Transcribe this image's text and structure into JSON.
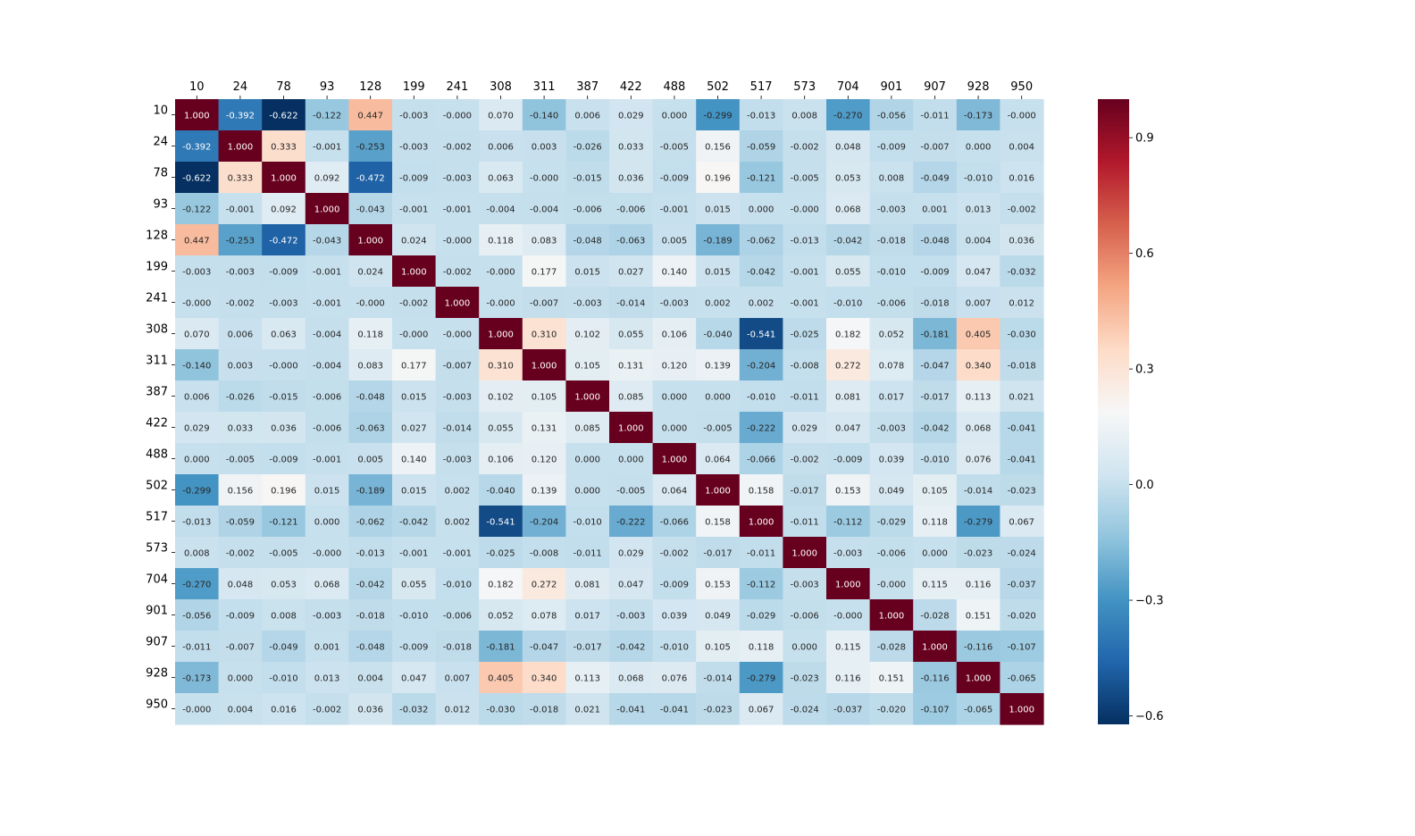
{
  "chart_data": {
    "type": "heatmap",
    "title": "",
    "xlabel": "",
    "ylabel": "",
    "labels": [
      "10",
      "24",
      "78",
      "93",
      "128",
      "199",
      "241",
      "308",
      "311",
      "387",
      "422",
      "488",
      "502",
      "517",
      "573",
      "704",
      "901",
      "907",
      "928",
      "950"
    ],
    "values": [
      [
        "1.000",
        "-0.392",
        "-0.622",
        "-0.122",
        "0.447",
        "-0.003",
        "-0.000",
        "0.070",
        "-0.140",
        "0.006",
        "0.029",
        "0.000",
        "-0.299",
        "-0.013",
        "0.008",
        "-0.270",
        "-0.056",
        "-0.011",
        "-0.173",
        "-0.000"
      ],
      [
        "-0.392",
        "1.000",
        "0.333",
        "-0.001",
        "-0.253",
        "-0.003",
        "-0.002",
        "0.006",
        "0.003",
        "-0.026",
        "0.033",
        "-0.005",
        "0.156",
        "-0.059",
        "-0.002",
        "0.048",
        "-0.009",
        "-0.007",
        "0.000",
        "0.004"
      ],
      [
        "-0.622",
        "0.333",
        "1.000",
        "0.092",
        "-0.472",
        "-0.009",
        "-0.003",
        "0.063",
        "-0.000",
        "-0.015",
        "0.036",
        "-0.009",
        "0.196",
        "-0.121",
        "-0.005",
        "0.053",
        "0.008",
        "-0.049",
        "-0.010",
        "0.016"
      ],
      [
        "-0.122",
        "-0.001",
        "0.092",
        "1.000",
        "-0.043",
        "-0.001",
        "-0.001",
        "-0.004",
        "-0.004",
        "-0.006",
        "-0.006",
        "-0.001",
        "0.015",
        "0.000",
        "-0.000",
        "0.068",
        "-0.003",
        "0.001",
        "0.013",
        "-0.002"
      ],
      [
        "0.447",
        "-0.253",
        "-0.472",
        "-0.043",
        "1.000",
        "0.024",
        "-0.000",
        "0.118",
        "0.083",
        "-0.048",
        "-0.063",
        "0.005",
        "-0.189",
        "-0.062",
        "-0.013",
        "-0.042",
        "-0.018",
        "-0.048",
        "0.004",
        "0.036"
      ],
      [
        "-0.003",
        "-0.003",
        "-0.009",
        "-0.001",
        "0.024",
        "1.000",
        "-0.002",
        "-0.000",
        "0.177",
        "0.015",
        "0.027",
        "0.140",
        "0.015",
        "-0.042",
        "-0.001",
        "0.055",
        "-0.010",
        "-0.009",
        "0.047",
        "-0.032"
      ],
      [
        "-0.000",
        "-0.002",
        "-0.003",
        "-0.001",
        "-0.000",
        "-0.002",
        "1.000",
        "-0.000",
        "-0.007",
        "-0.003",
        "-0.014",
        "-0.003",
        "0.002",
        "0.002",
        "-0.001",
        "-0.010",
        "-0.006",
        "-0.018",
        "0.007",
        "0.012"
      ],
      [
        "0.070",
        "0.006",
        "0.063",
        "-0.004",
        "0.118",
        "-0.000",
        "-0.000",
        "1.000",
        "0.310",
        "0.102",
        "0.055",
        "0.106",
        "-0.040",
        "-0.541",
        "-0.025",
        "0.182",
        "0.052",
        "-0.181",
        "0.405",
        "-0.030"
      ],
      [
        "-0.140",
        "0.003",
        "-0.000",
        "-0.004",
        "0.083",
        "0.177",
        "-0.007",
        "0.310",
        "1.000",
        "0.105",
        "0.131",
        "0.120",
        "0.139",
        "-0.204",
        "-0.008",
        "0.272",
        "0.078",
        "-0.047",
        "0.340",
        "-0.018"
      ],
      [
        "0.006",
        "-0.026",
        "-0.015",
        "-0.006",
        "-0.048",
        "0.015",
        "-0.003",
        "0.102",
        "0.105",
        "1.000",
        "0.085",
        "0.000",
        "0.000",
        "-0.010",
        "-0.011",
        "0.081",
        "0.017",
        "-0.017",
        "0.113",
        "0.021"
      ],
      [
        "0.029",
        "0.033",
        "0.036",
        "-0.006",
        "-0.063",
        "0.027",
        "-0.014",
        "0.055",
        "0.131",
        "0.085",
        "1.000",
        "0.000",
        "-0.005",
        "-0.222",
        "0.029",
        "0.047",
        "-0.003",
        "-0.042",
        "0.068",
        "-0.041"
      ],
      [
        "0.000",
        "-0.005",
        "-0.009",
        "-0.001",
        "0.005",
        "0.140",
        "-0.003",
        "0.106",
        "0.120",
        "0.000",
        "0.000",
        "1.000",
        "0.064",
        "-0.066",
        "-0.002",
        "-0.009",
        "0.039",
        "-0.010",
        "0.076",
        "-0.041"
      ],
      [
        "-0.299",
        "0.156",
        "0.196",
        "0.015",
        "-0.189",
        "0.015",
        "0.002",
        "-0.040",
        "0.139",
        "0.000",
        "-0.005",
        "0.064",
        "1.000",
        "0.158",
        "-0.017",
        "0.153",
        "0.049",
        "0.105",
        "-0.014",
        "-0.023"
      ],
      [
        "-0.013",
        "-0.059",
        "-0.121",
        "0.000",
        "-0.062",
        "-0.042",
        "0.002",
        "-0.541",
        "-0.204",
        "-0.010",
        "-0.222",
        "-0.066",
        "0.158",
        "1.000",
        "-0.011",
        "-0.112",
        "-0.029",
        "0.118",
        "-0.279",
        "0.067"
      ],
      [
        "0.008",
        "-0.002",
        "-0.005",
        "-0.000",
        "-0.013",
        "-0.001",
        "-0.001",
        "-0.025",
        "-0.008",
        "-0.011",
        "0.029",
        "-0.002",
        "-0.017",
        "-0.011",
        "1.000",
        "-0.003",
        "-0.006",
        "0.000",
        "-0.023",
        "-0.024"
      ],
      [
        "-0.270",
        "0.048",
        "0.053",
        "0.068",
        "-0.042",
        "0.055",
        "-0.010",
        "0.182",
        "0.272",
        "0.081",
        "0.047",
        "-0.009",
        "0.153",
        "-0.112",
        "-0.003",
        "1.000",
        "-0.000",
        "0.115",
        "0.116",
        "-0.037"
      ],
      [
        "-0.056",
        "-0.009",
        "0.008",
        "-0.003",
        "-0.018",
        "-0.010",
        "-0.006",
        "0.052",
        "0.078",
        "0.017",
        "-0.003",
        "0.039",
        "0.049",
        "-0.029",
        "-0.006",
        "-0.000",
        "1.000",
        "-0.028",
        "0.151",
        "-0.020"
      ],
      [
        "-0.011",
        "-0.007",
        "-0.049",
        "0.001",
        "-0.048",
        "-0.009",
        "-0.018",
        "-0.181",
        "-0.047",
        "-0.017",
        "-0.042",
        "-0.010",
        "0.105",
        "0.118",
        "0.000",
        "0.115",
        "-0.028",
        "1.000",
        "-0.116",
        "-0.107"
      ],
      [
        "-0.173",
        "0.000",
        "-0.010",
        "0.013",
        "0.004",
        "0.047",
        "0.007",
        "0.405",
        "0.340",
        "0.113",
        "0.068",
        "0.076",
        "-0.014",
        "-0.279",
        "-0.023",
        "0.116",
        "0.151",
        "-0.116",
        "1.000",
        "-0.065"
      ],
      [
        "-0.000",
        "0.004",
        "0.016",
        "-0.002",
        "0.036",
        "-0.032",
        "0.012",
        "-0.030",
        "-0.018",
        "0.021",
        "-0.041",
        "-0.041",
        "-0.023",
        "0.067",
        "-0.024",
        "-0.037",
        "-0.020",
        "-0.107",
        "-0.065",
        "1.000"
      ]
    ],
    "vmin": -0.622,
    "vmax": 1.0,
    "colormap": "RdBu_r",
    "colorbar": {
      "ticks": [
        0.9,
        0.6,
        0.3,
        0.0,
        -0.3,
        -0.6
      ],
      "tick_labels": [
        "0.9",
        "0.6",
        "0.3",
        "0.0",
        "−0.3",
        "−0.6"
      ]
    },
    "x_tick_position": "top",
    "grid": false
  }
}
